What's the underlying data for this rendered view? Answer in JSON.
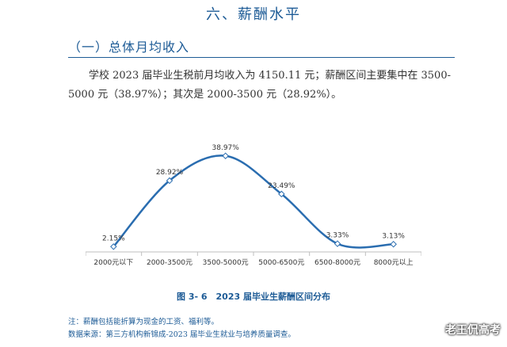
{
  "section_title": "六、薪酬水平",
  "subsection_title": "（一）总体月均收入",
  "paragraph": "学校 2023 届毕业生税前月均收入为 4150.11 元；薪酬区间主要集中在 3500-5000 元（38.97%）；其次是 2000-3500 元（28.92%）。",
  "caption": "图 3- 6　2023 届毕业生薪酬区间分布",
  "notes": {
    "note1": "注：薪酬包括能折算为现金的工资、福利等。",
    "note2": "数据来源：第三方机构新锦成-2023 届毕业生就业与培养质量调查。"
  },
  "watermark": "老王侃高考",
  "colors": {
    "accent": "#1d5b96",
    "line": "#2a6db0"
  },
  "chart_data": {
    "type": "line",
    "categories": [
      "2000元以下",
      "2000-3500元",
      "3500-5000元",
      "5000-6500元",
      "6500-8000元",
      "8000元以上"
    ],
    "series": [
      {
        "values": [
          2.15,
          28.92,
          38.97,
          23.49,
          3.33,
          3.13
        ]
      }
    ],
    "data_labels": [
      "2.15%",
      "28.92%",
      "38.97%",
      "23.49%",
      "3.33%",
      "3.13%"
    ],
    "ylim": [
      0,
      45
    ],
    "smooth": true,
    "grid": false,
    "legend": "none"
  }
}
